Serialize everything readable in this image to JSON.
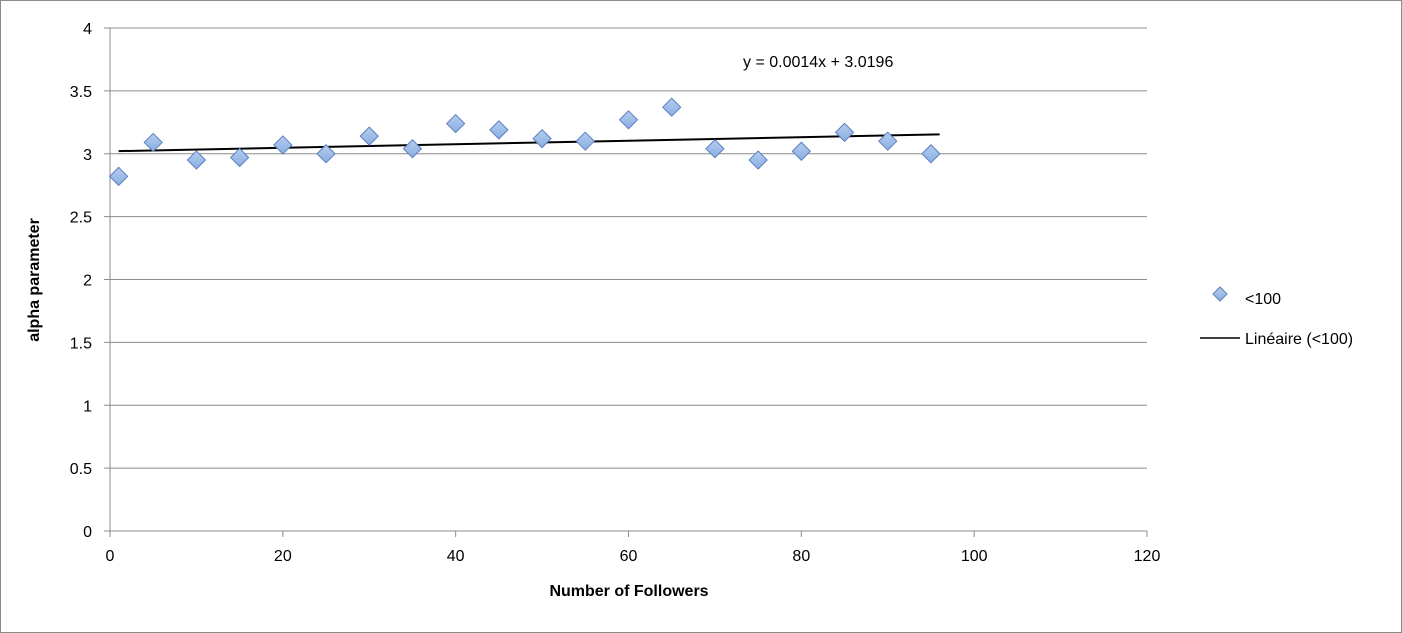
{
  "chart_data": {
    "type": "scatter",
    "title": "",
    "xlabel": "Number of Followers",
    "ylabel": "alpha parameter",
    "xlim": [
      0,
      120
    ],
    "ylim": [
      0,
      4
    ],
    "x_ticks": [
      0,
      20,
      40,
      60,
      80,
      100,
      120
    ],
    "y_ticks": [
      0,
      0.5,
      1,
      1.5,
      2,
      2.5,
      3,
      3.5,
      4
    ],
    "y_tick_labels": [
      "0",
      "0.5",
      "1",
      "1.5",
      "2",
      "2.5",
      "3",
      "3.5",
      "4"
    ],
    "grid": "horizontal",
    "legend_position": "right",
    "series": [
      {
        "name": "<100",
        "marker": "diamond",
        "color": "#8aaee0",
        "stroke": "#5b7fbf",
        "points": [
          [
            1,
            2.82
          ],
          [
            5,
            3.09
          ],
          [
            10,
            2.95
          ],
          [
            15,
            2.97
          ],
          [
            20,
            3.07
          ],
          [
            25,
            3.0
          ],
          [
            30,
            3.14
          ],
          [
            35,
            3.04
          ],
          [
            40,
            3.24
          ],
          [
            45,
            3.19
          ],
          [
            50,
            3.12
          ],
          [
            55,
            3.1
          ],
          [
            60,
            3.27
          ],
          [
            65,
            3.37
          ],
          [
            70,
            3.04
          ],
          [
            75,
            2.95
          ],
          [
            80,
            3.02
          ],
          [
            85,
            3.17
          ],
          [
            90,
            3.1
          ],
          [
            95,
            3.0
          ]
        ]
      }
    ],
    "trendline": {
      "name": "Linéaire (<100)",
      "slope": 0.0014,
      "intercept": 3.0196,
      "x_range": [
        1,
        96
      ],
      "equation_label": "y = 0.0014x + 3.0196",
      "color": "#000000"
    }
  }
}
